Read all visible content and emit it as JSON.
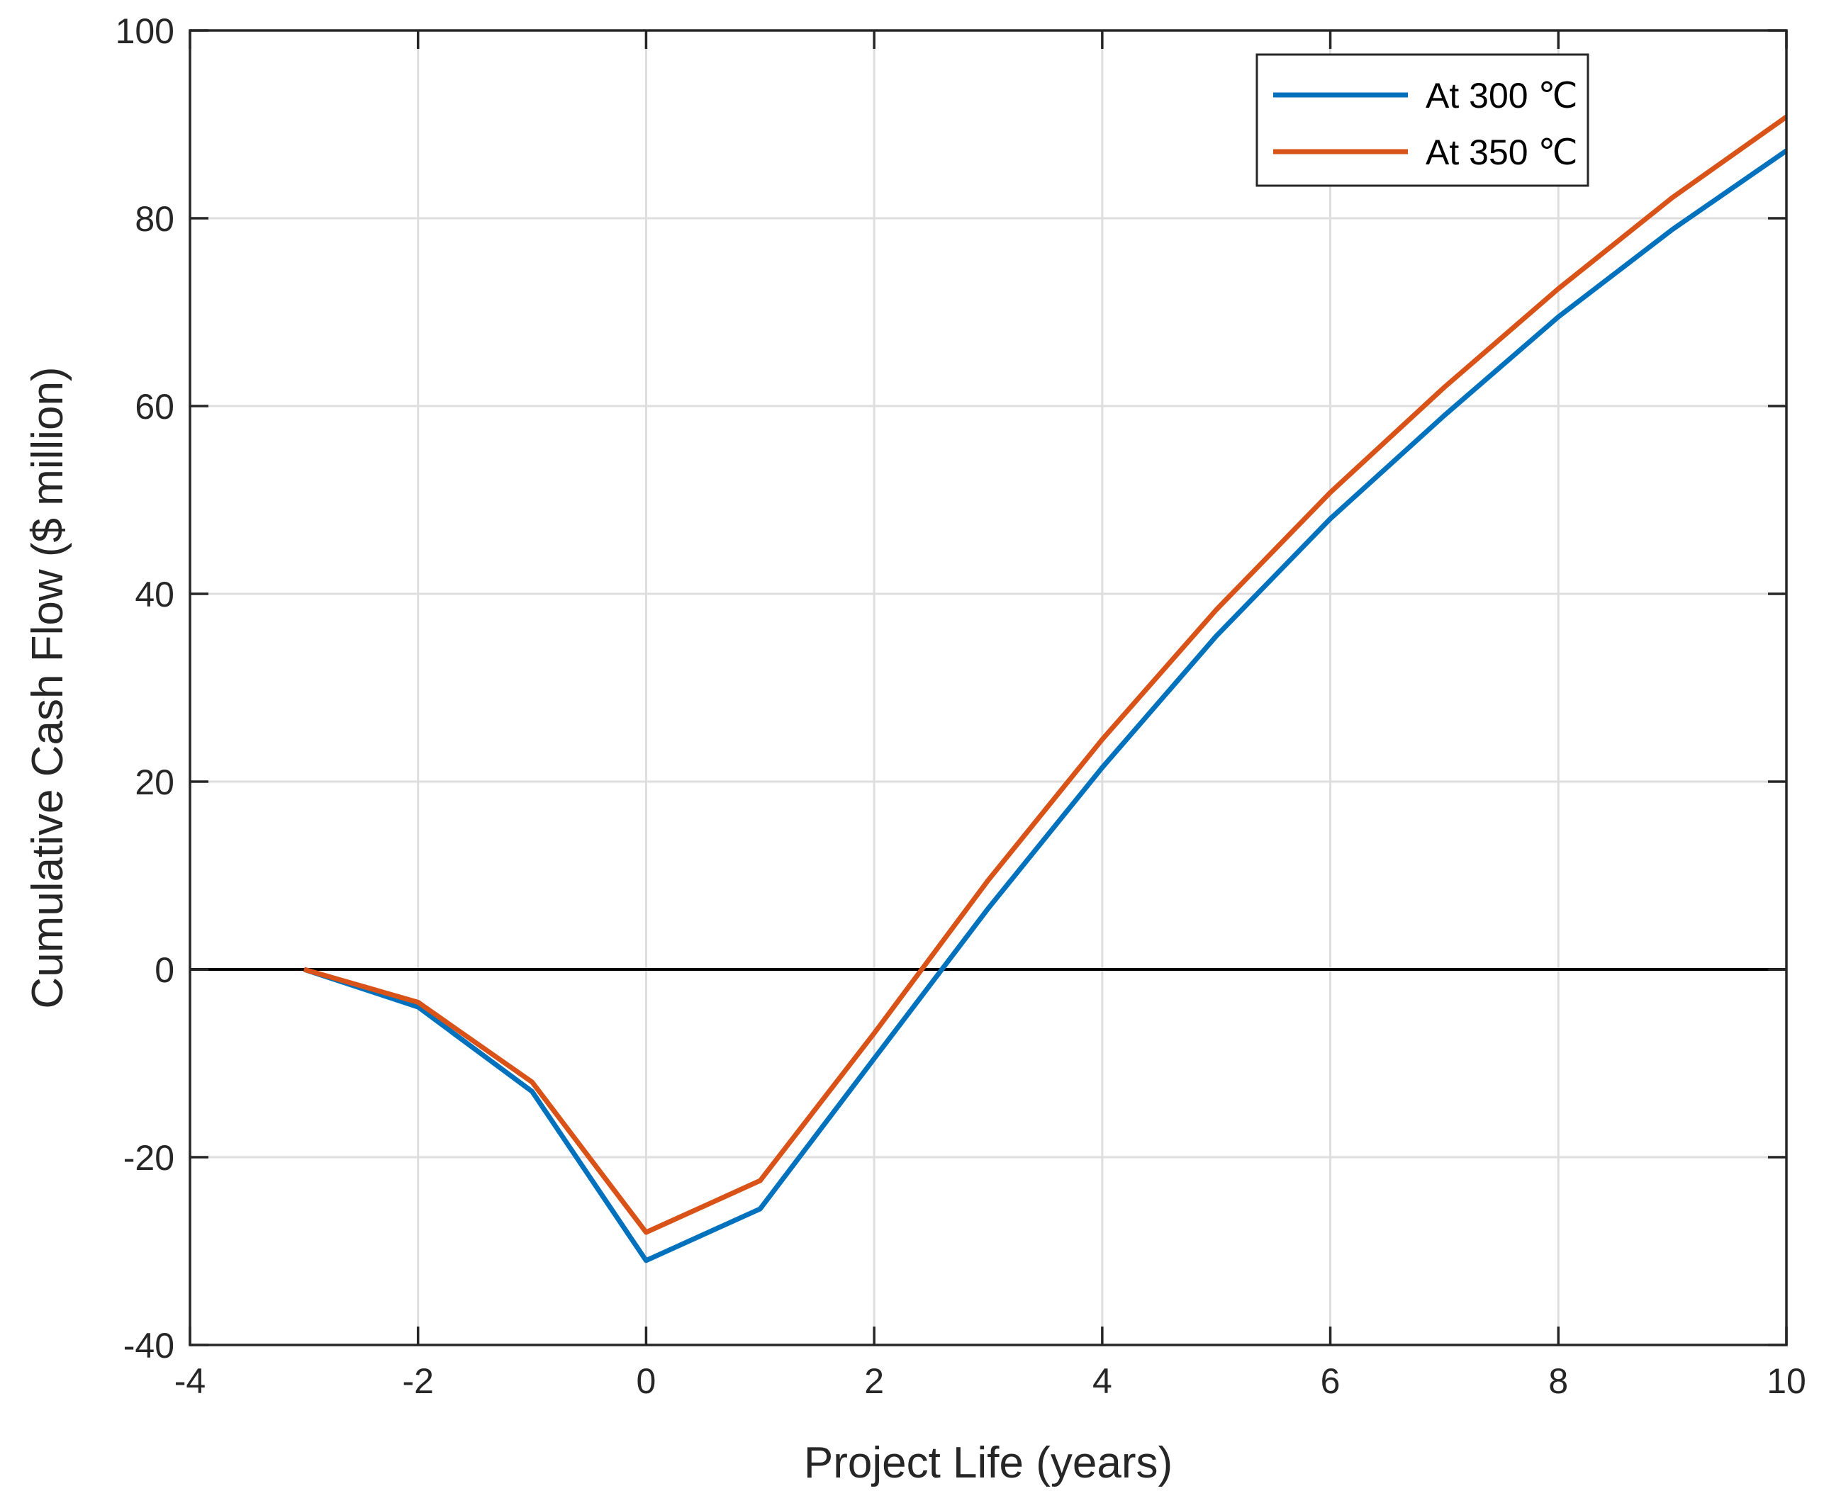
{
  "chart_data": {
    "type": "line",
    "title": "",
    "xlabel": "Project Life (years)",
    "ylabel": "Cumulative Cash Flow ($ million)",
    "xlim": [
      -4,
      10
    ],
    "ylim": [
      -40,
      100
    ],
    "xticks": [
      -4,
      -2,
      0,
      2,
      4,
      6,
      8,
      10
    ],
    "yticks": [
      -40,
      -20,
      0,
      20,
      40,
      60,
      80,
      100
    ],
    "grid": true,
    "legend_position": "top-right",
    "reference_line": {
      "y": 0,
      "color": "#000000"
    },
    "series": [
      {
        "name": "At 300 ℃",
        "color": "#0072BD",
        "x": [
          -3,
          -2,
          -1,
          0,
          1,
          2,
          3,
          4,
          5,
          6,
          7,
          8,
          9,
          10
        ],
        "y": [
          0,
          -4,
          -13,
          -31,
          -25.5,
          -9.5,
          6.5,
          21.5,
          35.5,
          48,
          59,
          69.5,
          78.8,
          87.2
        ]
      },
      {
        "name": "At 350 ℃",
        "color": "#D95319",
        "x": [
          -3,
          -2,
          -1,
          0,
          1,
          2,
          3,
          4,
          5,
          6,
          7,
          8,
          9,
          10
        ],
        "y": [
          0,
          -3.5,
          -12,
          -28,
          -22.5,
          -6.8,
          9.5,
          24.5,
          38.3,
          50.8,
          62,
          72.5,
          82.2,
          90.8
        ]
      }
    ]
  }
}
